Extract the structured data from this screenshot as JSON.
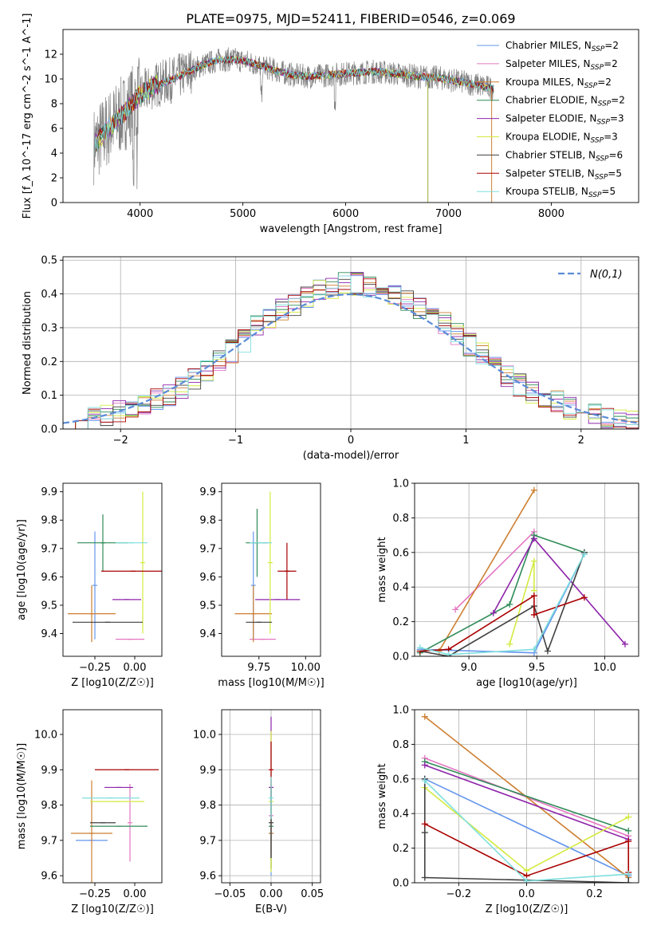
{
  "figure_title": "PLATE=0975, MJD=52411, FIBERID=0546, z=0.069",
  "colors": {
    "Chabrier MILES": "#6495ed",
    "Salpeter MILES": "#e377c2",
    "Kroupa MILES": "#cd7f32",
    "Chabrier ELODIE": "#2e8b57",
    "Salpeter ELODIE": "#8e24aa",
    "Kroupa ELODIE": "#d4ea40",
    "Chabrier STELIB": "#404040",
    "Salpeter STELIB": "#aa0000",
    "Kroupa STELIB": "#7fdede",
    "data": "#808080",
    "gauss": "#5b8bd6",
    "grid": "#b0b0b0"
  },
  "chart_data": [
    {
      "id": "spectrum",
      "type": "line",
      "xlabel": "wavelength [Angstrom, rest frame]",
      "ylabel": "Flux [f_λ 10^-17 erg cm^-2 s^-1 A^-1]",
      "xlim": [
        3250,
        8850
      ],
      "ylim": [
        0,
        14
      ],
      "xticks": [
        4000,
        5000,
        6000,
        7000,
        8000
      ],
      "yticks": [
        0,
        2,
        4,
        6,
        8,
        10,
        12
      ],
      "grid": false,
      "legend_position": "top-right",
      "legend": [
        {
          "name": "Chabrier MILES",
          "nssp": "2"
        },
        {
          "name": "Salpeter MILES",
          "nssp": "2"
        },
        {
          "name": "Kroupa MILES",
          "nssp": "2"
        },
        {
          "name": "Chabrier ELODIE",
          "nssp": "2"
        },
        {
          "name": "Salpeter ELODIE",
          "nssp": "3"
        },
        {
          "name": "Kroupa ELODIE",
          "nssp": "3"
        },
        {
          "name": "Chabrier STELIB",
          "nssp": "6"
        },
        {
          "name": "Salpeter STELIB",
          "nssp": "5"
        },
        {
          "name": "Kroupa STELIB",
          "nssp": "5"
        }
      ],
      "continuum": {
        "x": [
          3550,
          3650,
          3750,
          3850,
          3950,
          4050,
          4150,
          4300,
          4450,
          4600,
          4750,
          4900,
          5050,
          5200,
          5350,
          5500,
          5650,
          5800,
          5950,
          6100,
          6300,
          6500,
          6700,
          6900,
          7100,
          7300,
          7450
        ],
        "y": [
          4.6,
          5.6,
          6.5,
          7.3,
          8.3,
          9.0,
          9.5,
          9.9,
          10.5,
          11.1,
          11.5,
          11.6,
          11.4,
          11.0,
          10.6,
          10.3,
          10.2,
          10.3,
          10.4,
          10.5,
          10.6,
          10.4,
          10.2,
          10.1,
          9.8,
          9.5,
          9.2
        ]
      }
    },
    {
      "id": "residuals",
      "type": "line",
      "xlabel": "(data-model)/error",
      "ylabel": "Normed distribution",
      "xlim": [
        -2.5,
        2.5
      ],
      "ylim": [
        0,
        0.51
      ],
      "xticks": [
        -2,
        -1,
        0,
        1,
        2
      ],
      "yticks": [
        0.0,
        0.1,
        0.2,
        0.3,
        0.4,
        0.5
      ],
      "grid": true,
      "legend_position": "top-right",
      "gauss_label": "N(0,1)",
      "hist_base": [
        0.02,
        0.02,
        0.03,
        0.04,
        0.05,
        0.06,
        0.07,
        0.09,
        0.1,
        0.12,
        0.15,
        0.17,
        0.2,
        0.23,
        0.26,
        0.3,
        0.33,
        0.35,
        0.37,
        0.39,
        0.41,
        0.42,
        0.43,
        0.43,
        0.42,
        0.41,
        0.4,
        0.38,
        0.36,
        0.34,
        0.31,
        0.28,
        0.25,
        0.22,
        0.19,
        0.16,
        0.13,
        0.11,
        0.09,
        0.08,
        0.06,
        0.05,
        0.04,
        0.03,
        0.03,
        0.02
      ]
    },
    {
      "id": "age_vs_Z",
      "type": "scatter",
      "xlabel": "Z [log10(Z/Z☉)]",
      "ylabel": "age [log10(age/yr)]",
      "xlim": [
        -0.45,
        0.17
      ],
      "ylim": [
        9.32,
        9.93
      ],
      "xticks": [
        -0.25,
        0.0
      ],
      "xticklabels": [
        "−0.25",
        "0.00"
      ],
      "yticks": [
        9.4,
        9.5,
        9.6,
        9.7,
        9.8,
        9.9
      ],
      "grid": false,
      "points": [
        {
          "model": "Chabrier MILES",
          "x": -0.25,
          "xerr": 0.0,
          "y": 9.57,
          "yerr": 0.19
        },
        {
          "model": "Salpeter MILES",
          "x": -0.03,
          "xerr": 0.09,
          "y": 9.38,
          "yerr": 0.0
        },
        {
          "model": "Kroupa MILES",
          "x": -0.27,
          "xerr": 0.15,
          "y": 9.47,
          "yerr": 0.1
        },
        {
          "model": "Chabrier ELODIE",
          "x": -0.2,
          "xerr": 0.16,
          "y": 9.72,
          "yerr": 0.1
        },
        {
          "model": "Salpeter ELODIE",
          "x": -0.05,
          "xerr": 0.09,
          "y": 9.52,
          "yerr": 0.0
        },
        {
          "model": "Kroupa ELODIE",
          "x": 0.05,
          "xerr": 0.0,
          "y": 9.65,
          "yerr": 0.25
        },
        {
          "model": "Chabrier STELIB",
          "x": -0.17,
          "xerr": 0.22,
          "y": 9.44,
          "yerr": 0.0
        },
        {
          "model": "Salpeter STELIB",
          "x": -0.01,
          "xerr": 0.2,
          "y": 9.62,
          "yerr": 0.0
        },
        {
          "model": "Kroupa STELIB",
          "x": -0.02,
          "xerr": 0.1,
          "y": 9.72,
          "yerr": 0.0
        }
      ]
    },
    {
      "id": "age_vs_mass",
      "type": "scatter",
      "xlabel": "mass [log10(M/M☉)]",
      "ylabel": "",
      "xlim": [
        9.55,
        10.08
      ],
      "ylim": [
        9.32,
        9.93
      ],
      "xticks": [
        9.75,
        10.0
      ],
      "xticklabels": [
        "9.75",
        "10.00"
      ],
      "yticks": [
        9.4,
        9.5,
        9.6,
        9.7,
        9.8,
        9.9
      ],
      "grid": false,
      "points": [
        {
          "model": "Chabrier MILES",
          "x": 9.72,
          "xerr": 0.0,
          "y": 9.57,
          "yerr": 0.19
        },
        {
          "model": "Salpeter MILES",
          "x": 9.77,
          "xerr": 0.07,
          "y": 9.38,
          "yerr": 0.0
        },
        {
          "model": "Kroupa MILES",
          "x": 9.72,
          "xerr": 0.1,
          "y": 9.47,
          "yerr": 0.1
        },
        {
          "model": "Chabrier ELODIE",
          "x": 9.74,
          "xerr": 0.06,
          "y": 9.72,
          "yerr": 0.12
        },
        {
          "model": "Salpeter ELODIE",
          "x": 9.85,
          "xerr": 0.12,
          "y": 9.52,
          "yerr": 0.0
        },
        {
          "model": "Kroupa ELODIE",
          "x": 9.81,
          "xerr": 0.0,
          "y": 9.65,
          "yerr": 0.25
        },
        {
          "model": "Chabrier STELIB",
          "x": 9.75,
          "xerr": 0.07,
          "y": 9.44,
          "yerr": 0.0
        },
        {
          "model": "Salpeter STELIB",
          "x": 9.9,
          "xerr": 0.05,
          "y": 9.62,
          "yerr": 0.1
        },
        {
          "model": "Kroupa STELIB",
          "x": 9.76,
          "xerr": 0.06,
          "y": 9.72,
          "yerr": 0.0
        }
      ]
    },
    {
      "id": "weight_vs_age",
      "type": "line",
      "xlabel": "age [log10(age/yr)]",
      "ylabel": "mass weight",
      "xlim": [
        8.6,
        10.25
      ],
      "ylim": [
        0,
        1.0
      ],
      "xticks": [
        9.0,
        9.5,
        10.0
      ],
      "xticklabels": [
        "9.0",
        "9.5",
        "10.0"
      ],
      "yticks": [
        0.0,
        0.2,
        0.4,
        0.6,
        0.8,
        1.0
      ],
      "grid": true,
      "series": [
        {
          "model": "Chabrier MILES",
          "x": [
            8.64,
            9.48,
            9.85
          ],
          "y": [
            0.04,
            0.02,
            0.59
          ]
        },
        {
          "model": "Salpeter MILES",
          "x": [
            8.9,
            9.48
          ],
          "y": [
            0.27,
            0.72
          ]
        },
        {
          "model": "Kroupa MILES",
          "x": [
            8.78,
            9.48
          ],
          "y": [
            0.03,
            0.96
          ]
        },
        {
          "model": "Chabrier ELODIE",
          "x": [
            8.64,
            9.3,
            9.48,
            9.85
          ],
          "y": [
            0.02,
            0.3,
            0.7,
            0.6
          ]
        },
        {
          "model": "Salpeter ELODIE",
          "x": [
            9.18,
            9.48,
            10.15
          ],
          "y": [
            0.25,
            0.68,
            0.07
          ]
        },
        {
          "model": "Kroupa ELODIE",
          "x": [
            9.3,
            9.48,
            9.48
          ],
          "y": [
            0.07,
            0.55,
            0.38
          ]
        },
        {
          "model": "Chabrier STELIB",
          "x": [
            8.64,
            8.85,
            9.48,
            9.58,
            9.85
          ],
          "y": [
            0.03,
            0.0,
            0.29,
            0.03,
            0.6
          ]
        },
        {
          "model": "Salpeter STELIB",
          "x": [
            8.64,
            8.85,
            9.48,
            9.48,
            9.85
          ],
          "y": [
            0.03,
            0.04,
            0.35,
            0.24,
            0.34
          ]
        },
        {
          "model": "Kroupa STELIB",
          "x": [
            8.64,
            8.85,
            9.48,
            9.85
          ],
          "y": [
            0.05,
            0.01,
            0.04,
            0.59
          ]
        }
      ]
    },
    {
      "id": "mass_vs_Z",
      "type": "scatter",
      "xlabel": "Z [log10(Z/Z☉)]",
      "ylabel": "mass [log10(M/M☉)]",
      "xlim": [
        -0.45,
        0.17
      ],
      "ylim": [
        9.58,
        10.07
      ],
      "xticks": [
        -0.25,
        0.0
      ],
      "xticklabels": [
        "−0.25",
        "0.00"
      ],
      "yticks": [
        9.6,
        9.7,
        9.8,
        9.9,
        10.0
      ],
      "grid": false,
      "points": [
        {
          "model": "Chabrier MILES",
          "x": -0.27,
          "xerr": 0.1,
          "y": 9.7,
          "yerr": 0.0
        },
        {
          "model": "Salpeter MILES",
          "x": -0.03,
          "xerr": 0.0,
          "y": 9.75,
          "yerr": 0.11
        },
        {
          "model": "Kroupa MILES",
          "x": -0.27,
          "xerr": 0.13,
          "y": 9.72,
          "yerr": 0.15
        },
        {
          "model": "Chabrier ELODIE",
          "x": -0.1,
          "xerr": 0.18,
          "y": 9.74,
          "yerr": 0.0
        },
        {
          "model": "Salpeter ELODIE",
          "x": -0.1,
          "xerr": 0.09,
          "y": 9.85,
          "yerr": 0.0
        },
        {
          "model": "Kroupa ELODIE",
          "x": -0.11,
          "xerr": 0.17,
          "y": 9.81,
          "yerr": 0.0
        },
        {
          "model": "Chabrier STELIB",
          "x": -0.2,
          "xerr": 0.08,
          "y": 9.75,
          "yerr": 0.0
        },
        {
          "model": "Salpeter STELIB",
          "x": -0.05,
          "xerr": 0.2,
          "y": 9.9,
          "yerr": 0.0
        },
        {
          "model": "Kroupa STELIB",
          "x": -0.15,
          "xerr": 0.18,
          "y": 9.82,
          "yerr": 0.0
        }
      ]
    },
    {
      "id": "mass_vs_ebv",
      "type": "scatter",
      "xlabel": "E(B-V)",
      "ylabel": "",
      "xlim": [
        -0.06,
        0.06
      ],
      "ylim": [
        9.58,
        10.07
      ],
      "xticks": [
        -0.05,
        0.0,
        0.05
      ],
      "xticklabels": [
        "−0.05",
        "0.00",
        "0.05"
      ],
      "yticks": [
        9.6,
        9.7,
        9.8,
        9.9,
        10.0
      ],
      "grid": true,
      "points": [
        {
          "model": "Chabrier MILES",
          "x": 0.0,
          "xerr": 0.0,
          "y": 9.72,
          "yerr": 0.12
        },
        {
          "model": "Salpeter MILES",
          "x": 0.0,
          "xerr": 0.0,
          "y": 9.77,
          "yerr": 0.1
        },
        {
          "model": "Kroupa MILES",
          "x": 0.0,
          "xerr": 0.0,
          "y": 9.72,
          "yerr": 0.1
        },
        {
          "model": "Chabrier ELODIE",
          "x": 0.0,
          "xerr": 0.0,
          "y": 9.74,
          "yerr": 0.12
        },
        {
          "model": "Salpeter ELODIE",
          "x": 0.0,
          "xerr": 0.0,
          "y": 9.85,
          "yerr": 0.2
        },
        {
          "model": "Kroupa ELODIE",
          "x": 0.0,
          "xerr": 0.0,
          "y": 9.81,
          "yerr": 0.2
        },
        {
          "model": "Chabrier STELIB",
          "x": 0.0,
          "xerr": 0.0,
          "y": 9.75,
          "yerr": 0.1
        },
        {
          "model": "Salpeter STELIB",
          "x": 0.0,
          "xerr": 0.0,
          "y": 9.9,
          "yerr": 0.08
        },
        {
          "model": "Kroupa STELIB",
          "x": 0.0,
          "xerr": 0.0,
          "y": 9.82,
          "yerr": 0.06
        }
      ]
    },
    {
      "id": "weight_vs_Z",
      "type": "line",
      "xlabel": "Z [log10(Z/Z☉)]",
      "ylabel": "mass weight",
      "xlim": [
        -0.33,
        0.33
      ],
      "ylim": [
        0,
        1.0
      ],
      "xticks": [
        -0.2,
        0.0,
        0.2
      ],
      "xticklabels": [
        "−0.2",
        "0.0",
        "0.2"
      ],
      "yticks": [
        0.0,
        0.2,
        0.4,
        0.6,
        0.8,
        1.0
      ],
      "grid": true,
      "series": [
        {
          "model": "Chabrier MILES",
          "x": [
            -0.3,
            0.3
          ],
          "y": [
            0.6,
            0.04
          ]
        },
        {
          "model": "Salpeter MILES",
          "x": [
            -0.3,
            0.3
          ],
          "y": [
            0.72,
            0.27
          ]
        },
        {
          "model": "Kroupa MILES",
          "x": [
            -0.3,
            0.3
          ],
          "y": [
            0.96,
            0.03
          ]
        },
        {
          "model": "Chabrier ELODIE",
          "x": [
            -0.3,
            0.3
          ],
          "y": [
            0.7,
            0.3
          ]
        },
        {
          "model": "Salpeter ELODIE",
          "x": [
            -0.3,
            0.3
          ],
          "y": [
            0.68,
            0.25
          ]
        },
        {
          "model": "Kroupa ELODIE",
          "x": [
            -0.3,
            0.0,
            0.3
          ],
          "y": [
            0.55,
            0.07,
            0.38
          ]
        },
        {
          "model": "Chabrier STELIB",
          "x": [
            -0.3,
            -0.3,
            -0.3,
            0.3,
            0.3
          ],
          "y": [
            0.6,
            0.29,
            0.03,
            0.0,
            0.05
          ]
        },
        {
          "model": "Salpeter STELIB",
          "x": [
            -0.3,
            0.0,
            0.3,
            0.3
          ],
          "y": [
            0.34,
            0.04,
            0.24,
            0.06
          ]
        },
        {
          "model": "Kroupa STELIB",
          "x": [
            -0.3,
            0.0,
            0.3
          ],
          "y": [
            0.59,
            0.01,
            0.05
          ]
        }
      ]
    }
  ]
}
